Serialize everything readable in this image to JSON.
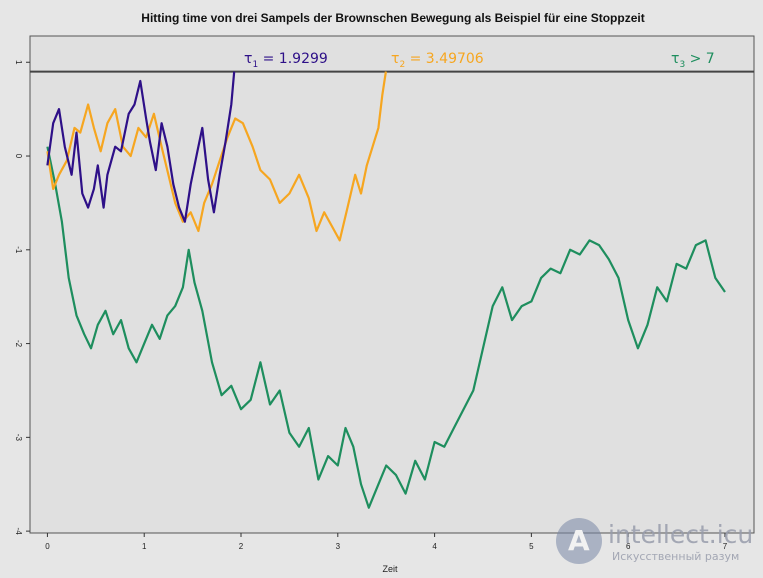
{
  "chart_data": {
    "type": "line",
    "title": "Hitting time von drei Sampels der Brownschen Bewegung als Beispiel für eine Stoppzeit",
    "xlabel": "Zeit",
    "ylabel": "",
    "xlim": [
      -0.18,
      7.3
    ],
    "ylim": [
      -4.02,
      1.28
    ],
    "x_ticks": [
      "0",
      "1",
      "2",
      "3",
      "4",
      "5",
      "6",
      "7"
    ],
    "y_ticks": [
      "-4",
      "-3",
      "-2",
      "-1",
      "0",
      "1"
    ],
    "barrier": {
      "y": 0.9,
      "color": "#444444"
    },
    "series": [
      {
        "color": "#2e1088",
        "label_main": "τ",
        "label_sub": "1",
        "label_rest": " = 1.9299",
        "x": [
          0,
          0.06,
          0.12,
          0.18,
          0.25,
          0.3,
          0.36,
          0.42,
          0.48,
          0.52,
          0.58,
          0.62,
          0.7,
          0.76,
          0.84,
          0.9,
          0.96,
          1.02,
          1.06,
          1.12,
          1.18,
          1.24,
          1.3,
          1.36,
          1.42,
          1.48,
          1.55,
          1.6,
          1.66,
          1.72,
          1.78,
          1.84,
          1.9,
          1.93
        ],
        "y": [
          -0.1,
          0.35,
          0.5,
          0.1,
          -0.2,
          0.25,
          -0.4,
          -0.55,
          -0.35,
          -0.1,
          -0.55,
          -0.2,
          0.1,
          0.05,
          0.45,
          0.55,
          0.8,
          0.4,
          0.15,
          -0.15,
          0.35,
          0.1,
          -0.3,
          -0.55,
          -0.7,
          -0.3,
          0.05,
          0.3,
          -0.25,
          -0.6,
          -0.2,
          0.15,
          0.55,
          0.9
        ]
      },
      {
        "color": "#f6a620",
        "label_main": "τ",
        "label_sub": "2",
        "label_rest": " = 3.49706",
        "x": [
          0,
          0.06,
          0.12,
          0.2,
          0.28,
          0.34,
          0.42,
          0.48,
          0.55,
          0.62,
          0.7,
          0.78,
          0.86,
          0.94,
          1.02,
          1.1,
          1.18,
          1.25,
          1.32,
          1.4,
          1.48,
          1.56,
          1.62,
          1.7,
          1.78,
          1.86,
          1.94,
          2.02,
          2.12,
          2.2,
          2.3,
          2.4,
          2.5,
          2.6,
          2.7,
          2.78,
          2.86,
          2.94,
          3.02,
          3.1,
          3.18,
          3.24,
          3.3,
          3.36,
          3.42,
          3.46,
          3.497
        ],
        "y": [
          0.05,
          -0.35,
          -0.2,
          -0.05,
          0.3,
          0.25,
          0.55,
          0.3,
          0.05,
          0.35,
          0.5,
          0.1,
          0.0,
          0.3,
          0.2,
          0.45,
          0.1,
          -0.2,
          -0.5,
          -0.7,
          -0.6,
          -0.8,
          -0.5,
          -0.3,
          -0.05,
          0.2,
          0.4,
          0.35,
          0.1,
          -0.15,
          -0.25,
          -0.5,
          -0.4,
          -0.2,
          -0.45,
          -0.8,
          -0.6,
          -0.75,
          -0.9,
          -0.55,
          -0.2,
          -0.4,
          -0.1,
          0.1,
          0.3,
          0.65,
          0.9
        ]
      },
      {
        "color": "#1e8e5e",
        "label_main": "τ",
        "label_sub": "3",
        "label_rest": " > 7",
        "x": [
          0,
          0.08,
          0.15,
          0.22,
          0.3,
          0.38,
          0.45,
          0.52,
          0.6,
          0.68,
          0.76,
          0.84,
          0.92,
          1.0,
          1.08,
          1.16,
          1.24,
          1.32,
          1.4,
          1.46,
          1.52,
          1.6,
          1.7,
          1.8,
          1.9,
          2.0,
          2.1,
          2.2,
          2.3,
          2.4,
          2.5,
          2.6,
          2.7,
          2.8,
          2.9,
          3.0,
          3.08,
          3.16,
          3.24,
          3.32,
          3.4,
          3.5,
          3.6,
          3.7,
          3.8,
          3.9,
          4.0,
          4.1,
          4.2,
          4.3,
          4.4,
          4.5,
          4.6,
          4.7,
          4.8,
          4.9,
          5.0,
          5.1,
          5.2,
          5.3,
          5.4,
          5.5,
          5.6,
          5.7,
          5.8,
          5.9,
          6.0,
          6.1,
          6.2,
          6.3,
          6.4,
          6.5,
          6.6,
          6.7,
          6.8,
          6.9,
          7.0
        ],
        "y": [
          0.1,
          -0.3,
          -0.7,
          -1.3,
          -1.7,
          -1.9,
          -2.05,
          -1.8,
          -1.65,
          -1.9,
          -1.75,
          -2.05,
          -2.2,
          -2.0,
          -1.8,
          -1.95,
          -1.7,
          -1.6,
          -1.4,
          -1.0,
          -1.35,
          -1.65,
          -2.2,
          -2.55,
          -2.45,
          -2.7,
          -2.6,
          -2.2,
          -2.65,
          -2.5,
          -2.95,
          -3.1,
          -2.9,
          -3.45,
          -3.2,
          -3.3,
          -2.9,
          -3.1,
          -3.5,
          -3.75,
          -3.55,
          -3.3,
          -3.4,
          -3.6,
          -3.25,
          -3.45,
          -3.05,
          -3.1,
          -2.9,
          -2.7,
          -2.5,
          -2.05,
          -1.6,
          -1.4,
          -1.75,
          -1.6,
          -1.55,
          -1.3,
          -1.2,
          -1.25,
          -1.0,
          -1.05,
          -0.9,
          -0.95,
          -1.1,
          -1.3,
          -1.75,
          -2.05,
          -1.8,
          -1.4,
          -1.55,
          -1.15,
          -1.2,
          -0.95,
          -0.9,
          -1.3,
          -1.45
        ]
      }
    ]
  },
  "watermark": {
    "logo_letter": "A",
    "brand": "intellect.icu",
    "tagline": "Искусственный разум"
  }
}
